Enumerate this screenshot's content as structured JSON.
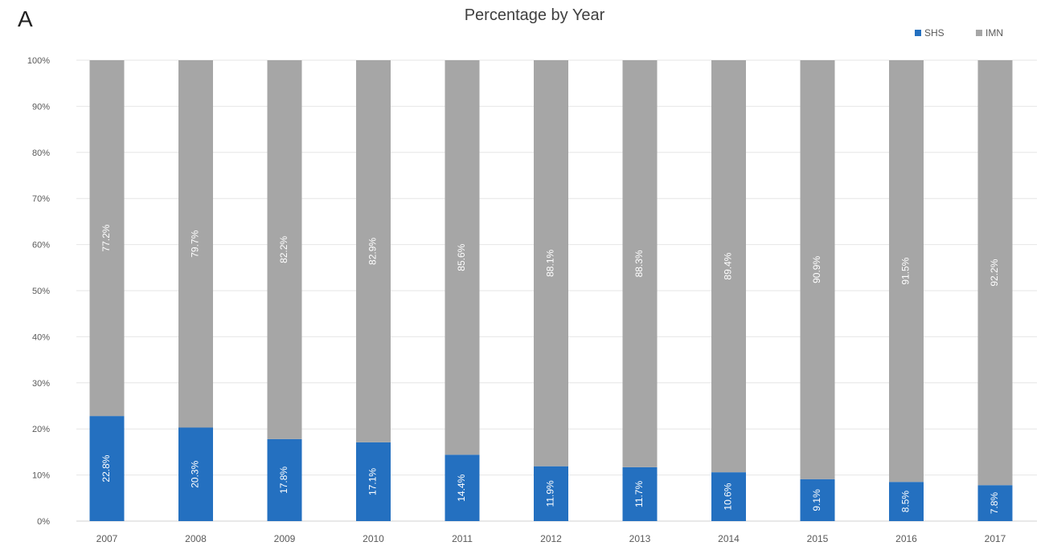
{
  "panel_label": "A",
  "chart_data": {
    "type": "bar",
    "stacked": true,
    "percent_stacked": true,
    "title": "Percentage by Year",
    "xlabel": "",
    "ylabel": "",
    "categories": [
      "2007",
      "2008",
      "2009",
      "2010",
      "2011",
      "2012",
      "2013",
      "2014",
      "2015",
      "2016",
      "2017"
    ],
    "series": [
      {
        "name": "SHS",
        "color": "#2470C0",
        "values": [
          22.8,
          20.3,
          17.8,
          17.1,
          14.4,
          11.9,
          11.7,
          10.6,
          9.1,
          8.5,
          7.8
        ],
        "labels": [
          "22.8%",
          "20.3%",
          "17.8%",
          "17.1%",
          "14.4%",
          "11.9%",
          "11.7%",
          "10.6%",
          "9.1%",
          "8.5%",
          "7.8%"
        ]
      },
      {
        "name": "IMN",
        "color": "#A6A6A6",
        "values": [
          77.2,
          79.7,
          82.2,
          82.9,
          85.6,
          88.1,
          88.3,
          89.4,
          90.9,
          91.5,
          92.2
        ],
        "labels": [
          "77.2%",
          "79.7%",
          "82.2%",
          "82.9%",
          "85.6%",
          "88.1%",
          "88.3%",
          "89.4%",
          "90.9%",
          "91.5%",
          "92.2%"
        ]
      }
    ],
    "ylim": [
      0,
      100
    ],
    "yticks": [
      "0%",
      "10%",
      "20%",
      "30%",
      "40%",
      "50%",
      "60%",
      "70%",
      "80%",
      "90%",
      "100%"
    ],
    "grid": true,
    "legend_position": "top-right"
  }
}
